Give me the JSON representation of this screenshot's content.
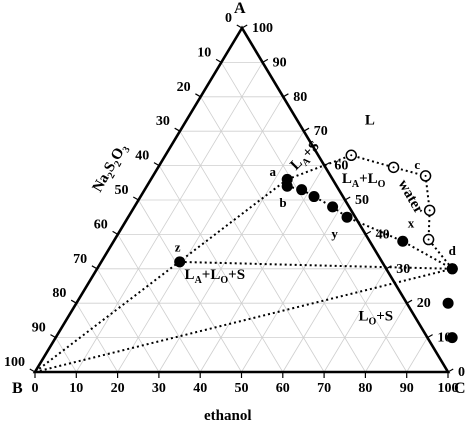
{
  "chart_data": {
    "type": "ternary",
    "vertices": {
      "top": "A",
      "bottom_left": "B",
      "bottom_right": "C"
    },
    "axis_titles": {
      "left": "Na2S2O3",
      "right": "water",
      "bottom": "ethanol"
    },
    "ticks": {
      "left": [
        "0",
        "10",
        "20",
        "30",
        "40",
        "50",
        "60",
        "70",
        "80",
        "90",
        "100"
      ],
      "right": [
        "100",
        "90",
        "80",
        "70",
        "60",
        "50",
        "40",
        "30",
        "20",
        "10",
        "0"
      ],
      "bottom": [
        "0",
        "10",
        "20",
        "30",
        "40",
        "50",
        "60",
        "70",
        "80",
        "90",
        "100"
      ]
    },
    "regions": [
      "L",
      "LA+S",
      "LA+LO",
      "LA+LO+S",
      "LO+S"
    ],
    "binodal_points_open": [
      {
        "ethanol": 45,
        "water": 63
      },
      {
        "ethanol": 57,
        "water": 59.5
      },
      {
        "ethanol": 66,
        "water": 57
      },
      {
        "ethanol": 72,
        "water": 47
      },
      {
        "ethanol": 76,
        "water": 38.5
      }
    ],
    "solubility_points_filled": [
      {
        "label": "a",
        "ethanol": 33,
        "water": 56
      },
      {
        "ethanol": 19,
        "water": 32
      },
      {
        "ethanol": 86,
        "water": 30
      },
      {
        "ethanol": 90,
        "water": 20
      },
      {
        "ethanol": 96,
        "water": 10
      }
    ],
    "tie_line_points_filled": [
      {
        "ethanol": 34,
        "water": 54
      },
      {
        "ethanol": 38,
        "water": 53
      },
      {
        "ethanol": 42,
        "water": 51
      },
      {
        "ethanol": 48,
        "water": 48
      },
      {
        "ethanol": 53,
        "water": 45
      },
      {
        "ethanol": 70,
        "water": 38
      },
      {
        "ethanol": 86,
        "water": 30
      }
    ],
    "point_labels": [
      {
        "text": "a",
        "ethanol": 29,
        "water": 57
      },
      {
        "text": "b",
        "ethanol": 36,
        "water": 48
      },
      {
        "text": "c",
        "ethanol": 63,
        "water": 59
      },
      {
        "text": "x",
        "ethanol": 70,
        "water": 42
      },
      {
        "text": "y",
        "ethanol": 53,
        "water": 39
      },
      {
        "text": "z",
        "ethanol": 17,
        "water": 35
      },
      {
        "text": "d",
        "ethanol": 84,
        "water": 34
      }
    ],
    "region_labels": [
      {
        "key": "L",
        "text": "L",
        "ethanol": 45,
        "water": 72
      },
      {
        "key": "LAS",
        "text": "LA+S",
        "ethanol": 35,
        "water": 62
      },
      {
        "key": "LALO",
        "text": "LA+LO",
        "ethanol": 52,
        "water": 55
      },
      {
        "key": "LALOS",
        "text": "LA+LO+S",
        "ethanol": 30,
        "water": 27
      },
      {
        "key": "LOS",
        "text": "LO+S",
        "ethanol": 75,
        "water": 15
      }
    ],
    "grid": true
  }
}
